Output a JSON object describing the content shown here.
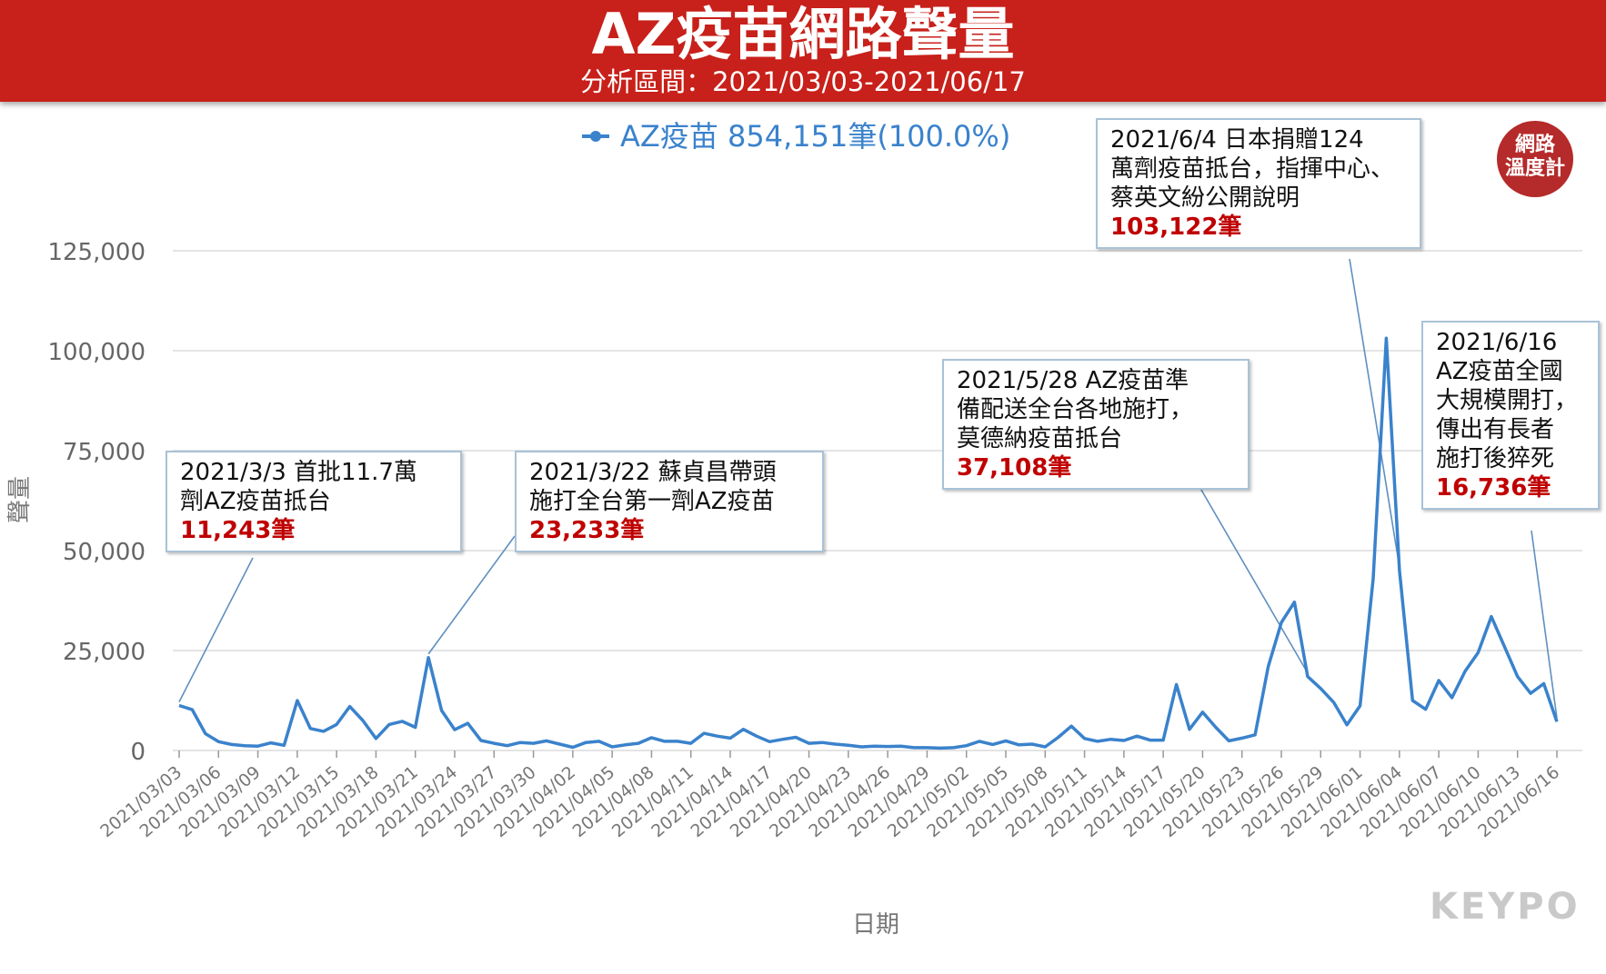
{
  "title": "AZ疫苗網路聲量",
  "subtitle": "分析區間：2021/03/03-2021/06/17",
  "brand": "KEYPO",
  "logo_text": "網路\n溫度計",
  "colors": {
    "banner": "#c8201a",
    "line": "#3a82cc",
    "annotation_value": "#c00000"
  },
  "chart_data": {
    "type": "line",
    "title": "",
    "xlabel": "日期",
    "ylabel": "聲量",
    "ylim": [
      0,
      125000
    ],
    "yticks": [
      0,
      25000,
      50000,
      75000,
      100000,
      125000
    ],
    "ytick_labels": [
      "0",
      "25,000",
      "50,000",
      "75,000",
      "100,000",
      "125,000"
    ],
    "xtick_labels": [
      "2021/03/03",
      "2021/03/06",
      "2021/03/09",
      "2021/03/12",
      "2021/03/15",
      "2021/03/18",
      "2021/03/21",
      "2021/03/24",
      "2021/03/27",
      "2021/03/30",
      "2021/04/02",
      "2021/04/05",
      "2021/04/08",
      "2021/04/11",
      "2021/04/14",
      "2021/04/17",
      "2021/04/20",
      "2021/04/23",
      "2021/04/26",
      "2021/04/29",
      "2021/05/02",
      "2021/05/05",
      "2021/05/08",
      "2021/05/11",
      "2021/05/14",
      "2021/05/17",
      "2021/05/20",
      "2021/05/23",
      "2021/05/26",
      "2021/05/29",
      "2021/06/01",
      "2021/06/04",
      "2021/06/07",
      "2021/06/10",
      "2021/06/13",
      "2021/06/16"
    ],
    "grid": true,
    "legend": "top-center",
    "x_start": "2021/03/03",
    "x_end": "2021/06/17",
    "series": [
      {
        "name": "AZ疫苗 854,151筆(100.0%)",
        "values": [
          11243,
          10200,
          4200,
          2200,
          1500,
          1200,
          1100,
          1900,
          1300,
          12500,
          5500,
          4800,
          6500,
          11000,
          7500,
          3000,
          6500,
          7300,
          5800,
          23233,
          10000,
          5200,
          6800,
          2500,
          1800,
          1200,
          2000,
          1800,
          2400,
          1600,
          800,
          2000,
          2300,
          900,
          1400,
          1800,
          3200,
          2300,
          2300,
          1800,
          4300,
          3600,
          3100,
          5300,
          3600,
          2200,
          2800,
          3300,
          1800,
          2000,
          1600,
          1300,
          900,
          1100,
          1000,
          1100,
          700,
          700,
          600,
          700,
          1200,
          2300,
          1500,
          2400,
          1400,
          1600,
          900,
          3300,
          6100,
          3000,
          2300,
          2800,
          2500,
          3600,
          2600,
          2600,
          16500,
          5300,
          9600,
          5800,
          2400,
          3100,
          3900,
          21000,
          32000,
          37108,
          18500,
          15500,
          12000,
          6400,
          11200,
          43000,
          103122,
          45000,
          12500,
          10300,
          17500,
          13200,
          19800,
          24500,
          33500,
          26000,
          18500,
          14300,
          16736,
          7200
        ]
      }
    ],
    "annotations": [
      {
        "date": "2021/03/03",
        "text": "2021/3/3 首批11.7萬\n劑AZ疫苗抵台",
        "value": "11,243筆"
      },
      {
        "date": "2021/03/22",
        "text": "2021/3/22 蘇貞昌帶頭\n施打全台第一劑AZ疫苗",
        "value": "23,233筆"
      },
      {
        "date": "2021/05/28",
        "text": "2021/5/28 AZ疫苗準\n備配送全台各地施打，\n莫德納疫苗抵台",
        "value": "37,108筆"
      },
      {
        "date": "2021/06/04",
        "text": "2021/6/4 日本捐贈124\n萬劑疫苗抵台，指揮中心、\n蔡英文紛公開說明",
        "value": "103,122筆"
      },
      {
        "date": "2021/06/16",
        "text": "2021/6/16\nAZ疫苗全國\n大規模開打，\n傳出有長者\n施打後猝死",
        "value": "16,736筆"
      }
    ]
  }
}
